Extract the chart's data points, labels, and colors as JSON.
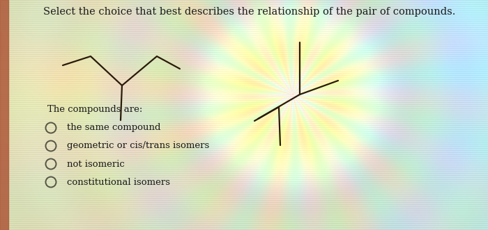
{
  "title": "Select the choice that best describes the relationship of the pair of compounds.",
  "title_fontsize": 10.5,
  "compounds_label": "The compounds are:",
  "choices": [
    "the same compound",
    "geometric or cis/trans isomers",
    "not isomeric",
    "constitutional isomers"
  ],
  "text_color": "#1a1a1a",
  "molecule1_color": "#2a1a0a",
  "molecule2_color": "#2a1a0a",
  "circle_edge_color": "#555544",
  "bg_stripe_color_a": [
    0.85,
    0.88,
    0.75
  ],
  "bg_stripe_color_b": [
    0.8,
    0.84,
    0.72
  ],
  "left_bar_color": "#c08060"
}
